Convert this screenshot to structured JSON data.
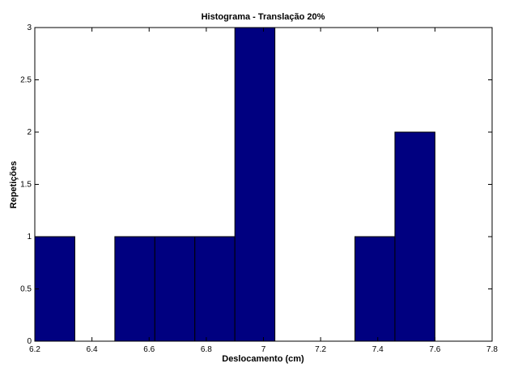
{
  "chart_data": {
    "type": "histogram",
    "title": "Histograma - Translação 20%",
    "xlabel": "Deslocamento (cm)",
    "ylabel": "Repetições",
    "bins": [
      6.2,
      6.34,
      6.48,
      6.62,
      6.76,
      6.9,
      7.04,
      7.18,
      7.32,
      7.46,
      7.6
    ],
    "counts": [
      1,
      0,
      1,
      1,
      1,
      3,
      0,
      0,
      1,
      2
    ],
    "color": "#000080",
    "xlim": [
      6.2,
      7.8
    ],
    "xticks": [
      6.2,
      6.4,
      6.6,
      6.8,
      7,
      7.2,
      7.4,
      7.6,
      7.8
    ],
    "ylim": [
      0,
      3
    ],
    "yticks": [
      0,
      0.5,
      1,
      1.5,
      2,
      2.5,
      3
    ],
    "grid": false
  }
}
